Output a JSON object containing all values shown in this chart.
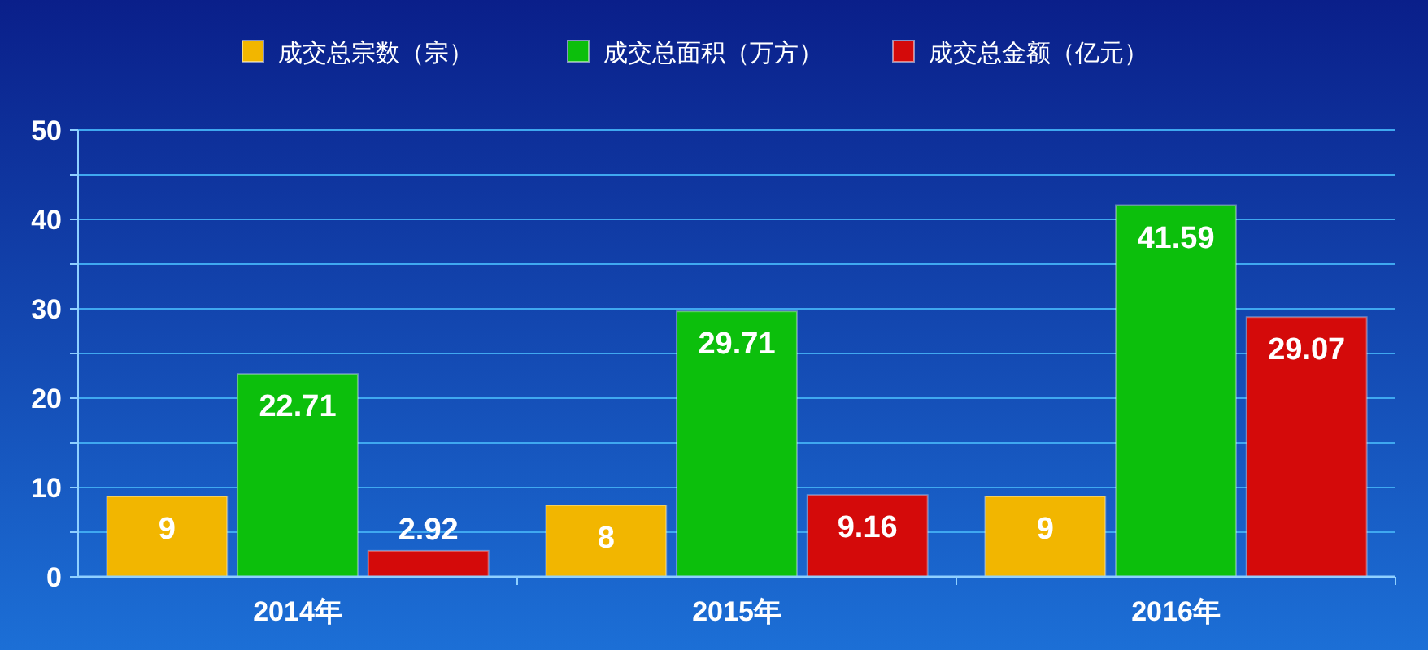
{
  "chart_data": {
    "type": "bar",
    "categories": [
      "2014年",
      "2015年",
      "2016年"
    ],
    "series": [
      {
        "name": "成交总宗数（宗）",
        "color": "#f2b600",
        "values": [
          9,
          8,
          9
        ]
      },
      {
        "name": "成交总面积（万方）",
        "color": "#0cbf0c",
        "values": [
          22.71,
          29.71,
          41.59
        ]
      },
      {
        "name": "成交总金额（亿元）",
        "color": "#d40a0a",
        "values": [
          2.92,
          9.16,
          29.07
        ]
      }
    ],
    "ylim": [
      0,
      50
    ],
    "yticks": [
      0,
      {
        "value": 5,
        "label": null
      },
      10,
      {
        "value": 15,
        "label": null
      },
      20,
      {
        "value": 25,
        "label": null
      },
      30,
      {
        "value": 35,
        "label": null
      },
      40,
      {
        "value": 45,
        "label": null
      },
      50
    ],
    "grid": "y",
    "legend": "top",
    "data_labels": true
  }
}
